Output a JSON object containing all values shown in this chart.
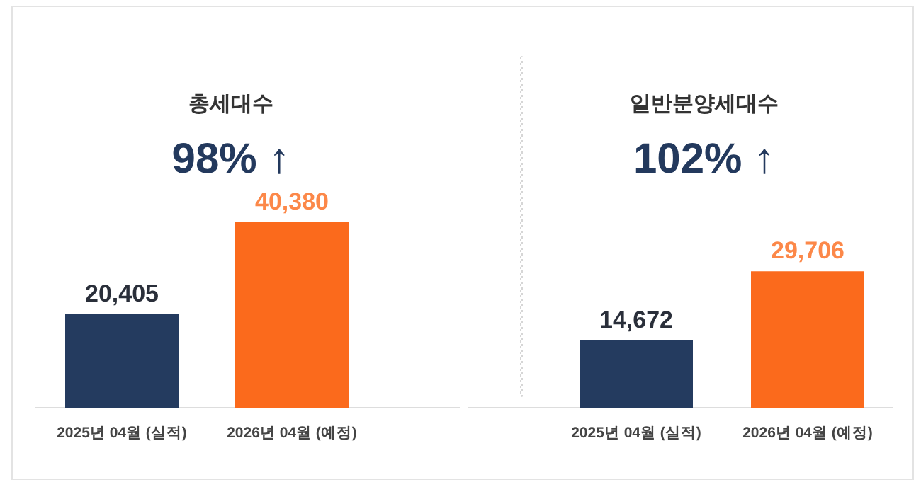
{
  "chart_data": [
    {
      "type": "bar",
      "title": "총세대수",
      "categories": [
        "2025년 04월 (실적)",
        "2026년 04월 (예정)"
      ],
      "values": [
        20405,
        40380
      ],
      "value_labels": [
        "20,405",
        "40,380"
      ],
      "colors": [
        "#243b5f",
        "#fb6a1c"
      ],
      "annotations": [
        "98% ↑"
      ]
    },
    {
      "type": "bar",
      "title": "일반분양세대수",
      "categories": [
        "2025년 04월 (실적)",
        "2026년 04월 (예정)"
      ],
      "values": [
        14672,
        29706
      ],
      "value_labels": [
        "14,672",
        "29,706"
      ],
      "colors": [
        "#243b5f",
        "#fb6a1c"
      ],
      "annotations": [
        "102% ↑"
      ]
    }
  ]
}
